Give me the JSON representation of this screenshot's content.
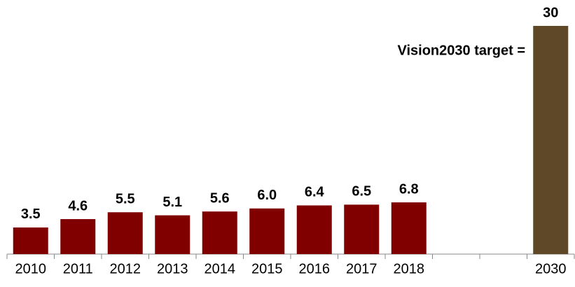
{
  "chart_data": {
    "type": "bar",
    "categories": [
      "2010",
      "2011",
      "2012",
      "2013",
      "2014",
      "2015",
      "2016",
      "2017",
      "2018",
      null,
      null,
      "2030"
    ],
    "values": [
      3.5,
      4.6,
      5.5,
      5.1,
      5.6,
      6.0,
      6.4,
      6.5,
      6.8,
      null,
      null,
      30
    ],
    "value_labels": [
      "3.5",
      "4.6",
      "5.5",
      "5.1",
      "5.6",
      "6.0",
      "6.4",
      "6.5",
      "6.8",
      null,
      null,
      "30"
    ],
    "colors": [
      "#800000",
      "#800000",
      "#800000",
      "#800000",
      "#800000",
      "#800000",
      "#800000",
      "#800000",
      "#800000",
      null,
      null,
      "#5f4827"
    ],
    "ylim": [
      0,
      30
    ],
    "annotation": "Vision2030 target ="
  }
}
